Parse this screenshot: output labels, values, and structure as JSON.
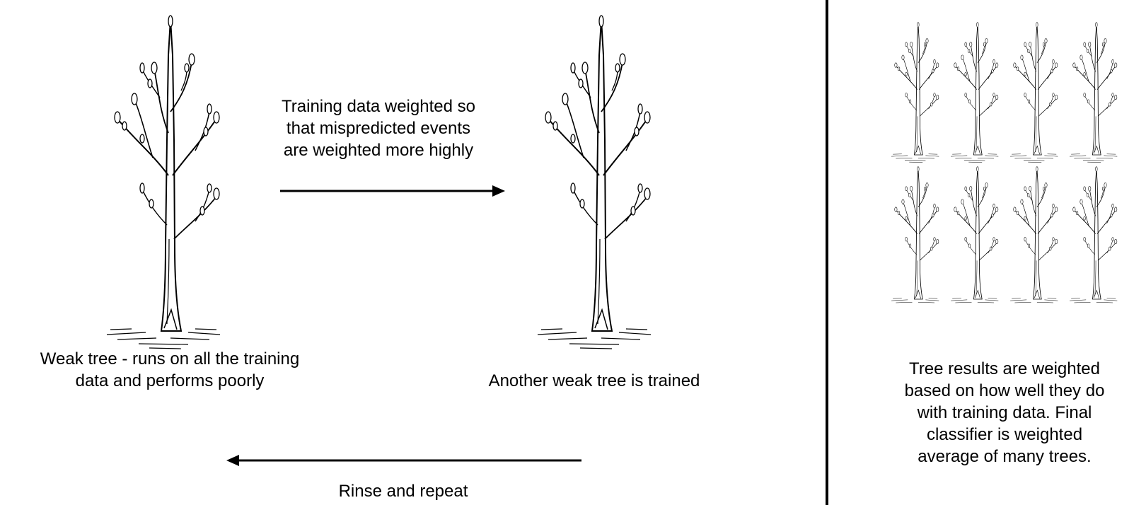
{
  "diagram": {
    "first_tree_caption": "Weak tree - runs on all the training\ndata and performs poorly",
    "second_tree_caption": "Another weak tree is trained",
    "forward_arrow_label": "Training data weighted so\nthat mispredicted events\nare weighted more highly",
    "back_arrow_label": "Rinse and repeat",
    "ensemble_caption": "Tree results are weighted\nbased on how well they do\nwith training data. Final\nclassifier is weighted\naverage of many trees.",
    "ensemble_tree_count": 8
  }
}
